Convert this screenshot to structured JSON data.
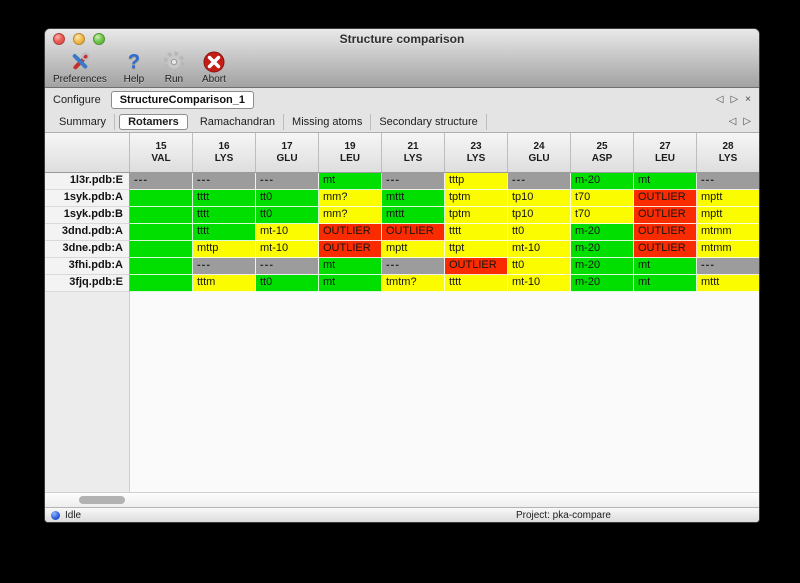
{
  "window": {
    "title": "Structure comparison"
  },
  "titlebar_buttons": {
    "close": "close",
    "minimize": "minimize",
    "zoom": "zoom"
  },
  "toolbar": {
    "items": [
      {
        "label": "Preferences",
        "icon": "tools-icon"
      },
      {
        "label": "Help",
        "icon": "question-icon",
        "glyph": "?"
      },
      {
        "label": "Run",
        "icon": "gear-icon"
      },
      {
        "label": "Abort",
        "icon": "stop-x-icon"
      }
    ]
  },
  "configure": {
    "label": "Configure",
    "value": "StructureComparison_1",
    "nav": {
      "prev": "◁",
      "next": "▷",
      "close": "×"
    }
  },
  "tabs": {
    "items": [
      {
        "label": "Summary",
        "selected": false
      },
      {
        "label": "Rotamers",
        "selected": true
      },
      {
        "label": "Ramachandran",
        "selected": false
      },
      {
        "label": "Missing atoms",
        "selected": false
      },
      {
        "label": "Secondary structure",
        "selected": false
      }
    ],
    "nav": {
      "prev": "◁",
      "next": "▷"
    }
  },
  "colors": {
    "green": "#00df00",
    "yellow": "#fcfc00",
    "red": "#fb2b00",
    "gray": "#9c9c9c"
  },
  "table": {
    "columns": [
      {
        "num": "15",
        "res": "VAL"
      },
      {
        "num": "16",
        "res": "LYS"
      },
      {
        "num": "17",
        "res": "GLU"
      },
      {
        "num": "19",
        "res": "LEU"
      },
      {
        "num": "21",
        "res": "LYS"
      },
      {
        "num": "23",
        "res": "LYS"
      },
      {
        "num": "24",
        "res": "GLU"
      },
      {
        "num": "25",
        "res": "ASP"
      },
      {
        "num": "27",
        "res": "LEU"
      },
      {
        "num": "28",
        "res": "LYS"
      }
    ],
    "rows": [
      {
        "label": "1l3r.pdb:E",
        "cells": [
          {
            "text": "---",
            "color": "gray"
          },
          {
            "text": "---",
            "color": "gray"
          },
          {
            "text": "---",
            "color": "gray"
          },
          {
            "text": "mt",
            "color": "green"
          },
          {
            "text": "---",
            "color": "gray"
          },
          {
            "text": "tttp",
            "color": "yellow"
          },
          {
            "text": "---",
            "color": "gray"
          },
          {
            "text": "m-20",
            "color": "green"
          },
          {
            "text": "mt",
            "color": "green"
          },
          {
            "text": "---",
            "color": "gray"
          }
        ],
        "overflow": "green"
      },
      {
        "label": "1syk.pdb:A",
        "cells": [
          {
            "text": "",
            "color": "green"
          },
          {
            "text": "tttt",
            "color": "green"
          },
          {
            "text": "tt0",
            "color": "green"
          },
          {
            "text": "mm?",
            "color": "yellow"
          },
          {
            "text": "mttt",
            "color": "green"
          },
          {
            "text": "tptm",
            "color": "yellow"
          },
          {
            "text": "tp10",
            "color": "yellow"
          },
          {
            "text": "t70",
            "color": "yellow"
          },
          {
            "text": "OUTLIER",
            "color": "red"
          },
          {
            "text": "mptt",
            "color": "yellow"
          }
        ],
        "overflow": "green"
      },
      {
        "label": "1syk.pdb:B",
        "cells": [
          {
            "text": "",
            "color": "green"
          },
          {
            "text": "tttt",
            "color": "green"
          },
          {
            "text": "tt0",
            "color": "green"
          },
          {
            "text": "mm?",
            "color": "yellow"
          },
          {
            "text": "mttt",
            "color": "green"
          },
          {
            "text": "tptm",
            "color": "yellow"
          },
          {
            "text": "tp10",
            "color": "yellow"
          },
          {
            "text": "t70",
            "color": "yellow"
          },
          {
            "text": "OUTLIER",
            "color": "red"
          },
          {
            "text": "mptt",
            "color": "yellow"
          }
        ],
        "overflow": "green"
      },
      {
        "label": "3dnd.pdb:A",
        "cells": [
          {
            "text": "",
            "color": "green"
          },
          {
            "text": "tttt",
            "color": "green"
          },
          {
            "text": "mt-10",
            "color": "yellow"
          },
          {
            "text": "OUTLIER",
            "color": "red"
          },
          {
            "text": "OUTLIER",
            "color": "red"
          },
          {
            "text": "tttt",
            "color": "yellow"
          },
          {
            "text": "tt0",
            "color": "yellow"
          },
          {
            "text": "m-20",
            "color": "green"
          },
          {
            "text": "OUTLIER",
            "color": "red"
          },
          {
            "text": "mtmm",
            "color": "yellow"
          }
        ],
        "overflow": "green"
      },
      {
        "label": "3dne.pdb:A",
        "cells": [
          {
            "text": "",
            "color": "green"
          },
          {
            "text": "mttp",
            "color": "yellow"
          },
          {
            "text": "mt-10",
            "color": "yellow"
          },
          {
            "text": "OUTLIER",
            "color": "red"
          },
          {
            "text": "mptt",
            "color": "yellow"
          },
          {
            "text": "ttpt",
            "color": "yellow"
          },
          {
            "text": "mt-10",
            "color": "yellow"
          },
          {
            "text": "m-20",
            "color": "green"
          },
          {
            "text": "OUTLIER",
            "color": "red"
          },
          {
            "text": "mtmm",
            "color": "yellow"
          }
        ],
        "overflow": "green"
      },
      {
        "label": "3fhi.pdb:A",
        "cells": [
          {
            "text": "",
            "color": "green"
          },
          {
            "text": "---",
            "color": "gray"
          },
          {
            "text": "---",
            "color": "gray"
          },
          {
            "text": "mt",
            "color": "green"
          },
          {
            "text": "---",
            "color": "gray"
          },
          {
            "text": "OUTLIER",
            "color": "red"
          },
          {
            "text": "tt0",
            "color": "yellow"
          },
          {
            "text": "m-20",
            "color": "green"
          },
          {
            "text": "mt",
            "color": "green"
          },
          {
            "text": "---",
            "color": "gray"
          }
        ],
        "overflow": "yellow"
      },
      {
        "label": "3fjq.pdb:E",
        "cells": [
          {
            "text": "",
            "color": "green"
          },
          {
            "text": "tttm",
            "color": "yellow"
          },
          {
            "text": "tt0",
            "color": "green"
          },
          {
            "text": "mt",
            "color": "green"
          },
          {
            "text": "tmtm?",
            "color": "yellow"
          },
          {
            "text": "tttt",
            "color": "yellow"
          },
          {
            "text": "mt-10",
            "color": "yellow"
          },
          {
            "text": "m-20",
            "color": "green"
          },
          {
            "text": "mt",
            "color": "green"
          },
          {
            "text": "mttt",
            "color": "yellow"
          }
        ],
        "overflow": "green"
      }
    ]
  },
  "statusbar": {
    "status": "Idle",
    "project": "Project: pka-compare"
  }
}
